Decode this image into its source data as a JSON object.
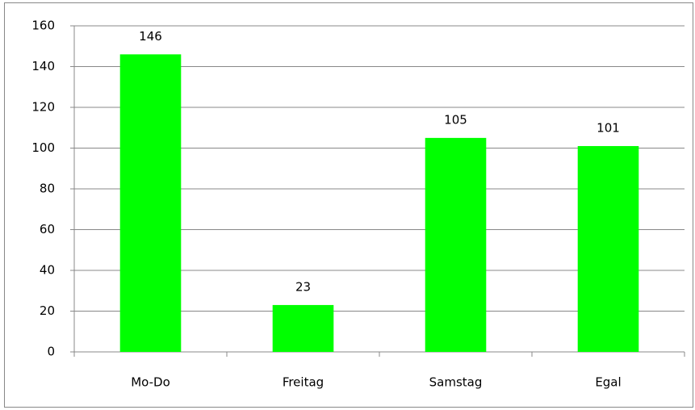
{
  "chart_data": {
    "type": "bar",
    "categories": [
      "Mo-Do",
      "Freitag",
      "Samstag",
      "Egal"
    ],
    "values": [
      146,
      23,
      105,
      101
    ],
    "color": "#00ff00",
    "ylim": [
      0,
      160
    ],
    "yticks": [
      0,
      20,
      40,
      60,
      80,
      100,
      120,
      140,
      160
    ],
    "grid": true,
    "data_labels": true
  }
}
